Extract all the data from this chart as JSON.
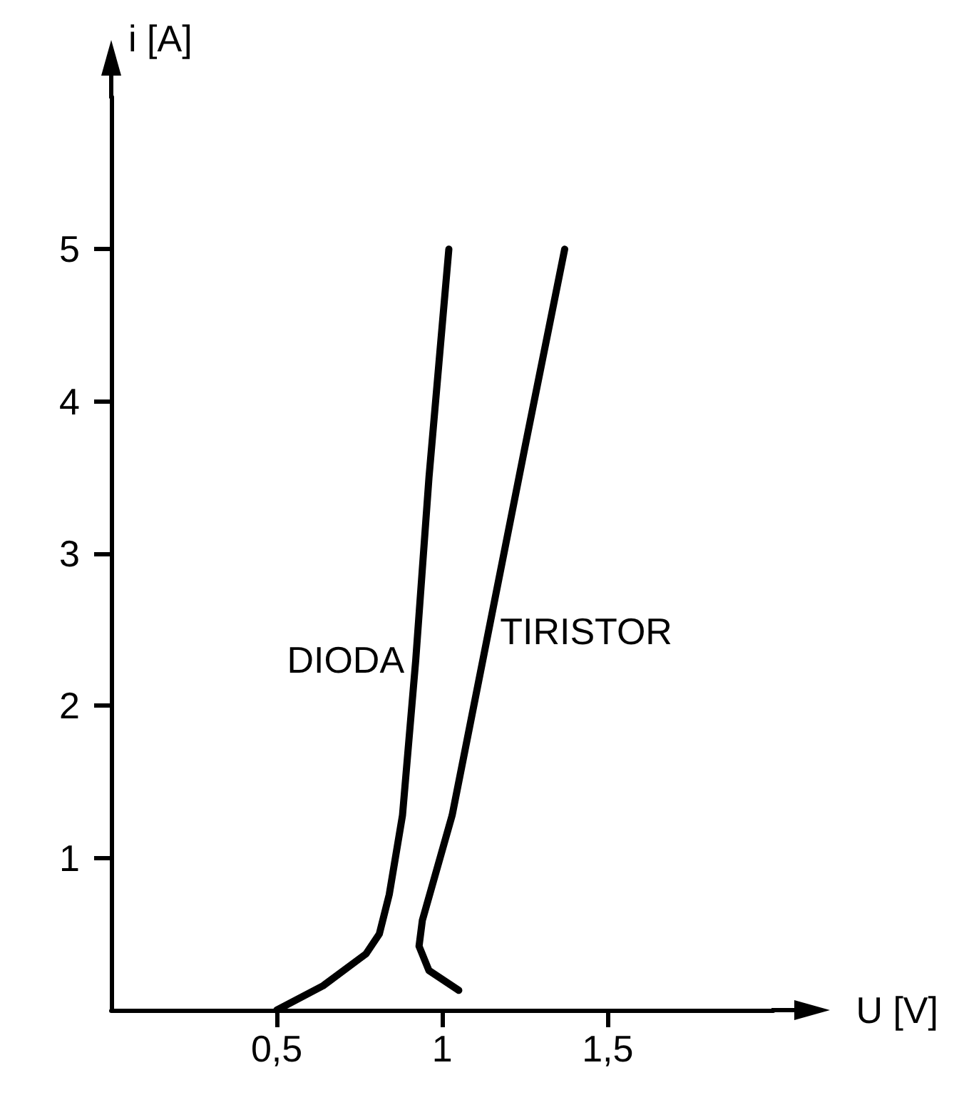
{
  "chart_data": {
    "type": "line",
    "xlabel": "U [V]",
    "ylabel": "i [A]",
    "xlim": [
      0,
      2
    ],
    "ylim": [
      0,
      6
    ],
    "xticks": [
      {
        "value": 0.5,
        "label": "0,5"
      },
      1,
      {
        "value": 1.5,
        "label": "1,5"
      }
    ],
    "yticks": [
      1,
      2,
      3,
      4,
      5
    ],
    "grid": false,
    "legend": false,
    "marker": "none",
    "line_style": "solid",
    "series": [
      {
        "name": "DIODA",
        "color": "#000000",
        "x": [
          0.5,
          0.64,
          0.77,
          0.81,
          0.84,
          0.88,
          0.92,
          0.96,
          1.02
        ],
        "values": [
          0,
          0.16,
          0.37,
          0.5,
          0.76,
          1.28,
          2.3,
          3.5,
          5
        ]
      },
      {
        "name": "TIRISTOR",
        "color": "#000000",
        "x": [
          1.05,
          0.96,
          0.93,
          0.94,
          1.03,
          1.14,
          1.25,
          1.37
        ],
        "values": [
          0.13,
          0.26,
          0.42,
          0.59,
          1.28,
          2.49,
          3.7,
          5
        ]
      }
    ]
  }
}
